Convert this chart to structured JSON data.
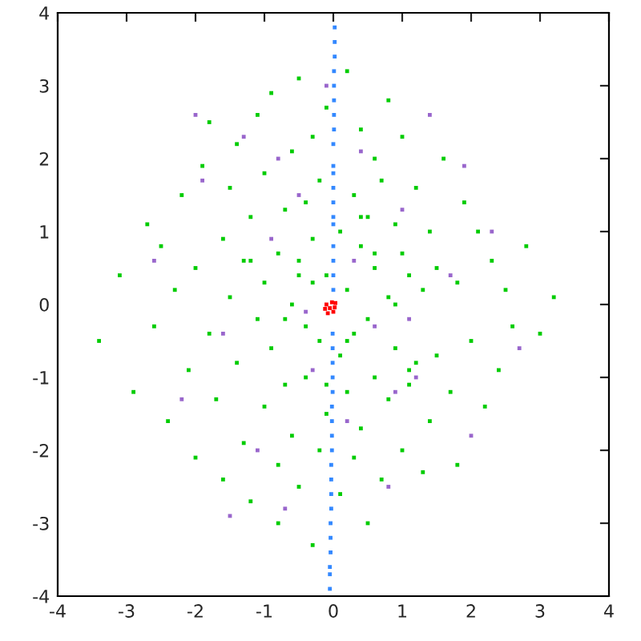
{
  "chart_data": {
    "type": "scatter",
    "marker": "square",
    "grid": false,
    "legend": false,
    "xlim": [
      -4,
      4
    ],
    "ylim": [
      -4,
      4
    ],
    "xticks": [
      -4,
      -3,
      -2,
      -1,
      0,
      1,
      2,
      3,
      4
    ],
    "yticks": [
      -4,
      -3,
      -2,
      -1,
      0,
      1,
      2,
      3,
      4
    ],
    "series": [
      {
        "color": "#00cc00",
        "x": [
          -3.4,
          -3.1,
          -2.9,
          -2.7,
          -2.6,
          -2.5,
          -2.4,
          -2.3,
          -2.2,
          -2.1,
          -2.0,
          -2.0,
          -1.9,
          -1.8,
          -1.8,
          -1.7,
          -1.6,
          -1.6,
          -1.5,
          -1.5,
          -1.4,
          -1.4,
          -1.3,
          -1.3,
          -1.2,
          -1.2,
          -1.1,
          -1.1,
          -1.0,
          -1.0,
          -1.0,
          -0.9,
          -0.9,
          -0.8,
          -0.8,
          -0.8,
          -0.7,
          -0.7,
          -0.6,
          -0.6,
          -0.6,
          -0.5,
          -0.5,
          -0.5,
          -0.4,
          -0.4,
          -0.4,
          -0.3,
          -0.3,
          -0.3,
          -0.2,
          -0.2,
          -0.2,
          -0.1,
          -0.1,
          -0.1,
          0.1,
          0.1,
          0.1,
          0.2,
          0.2,
          0.2,
          0.3,
          0.3,
          0.3,
          0.4,
          0.4,
          0.4,
          0.5,
          0.5,
          0.5,
          0.6,
          0.6,
          0.6,
          0.7,
          0.7,
          0.8,
          0.8,
          0.8,
          0.9,
          0.9,
          1.0,
          1.0,
          1.0,
          1.1,
          1.1,
          1.2,
          1.2,
          1.3,
          1.3,
          1.4,
          1.4,
          1.5,
          1.5,
          1.6,
          1.7,
          1.8,
          1.8,
          1.9,
          2.0,
          2.1,
          2.2,
          2.3,
          2.4,
          2.5,
          2.6,
          2.8,
          3.0,
          3.2,
          -0.3,
          0.2,
          0.6,
          -0.7,
          1.1,
          -1.2,
          0.4,
          -0.1,
          0.9,
          -0.5
        ],
        "values": [
          -0.5,
          0.4,
          -1.2,
          1.1,
          -0.3,
          0.8,
          -1.6,
          0.2,
          1.5,
          -0.9,
          0.5,
          -2.1,
          1.9,
          -0.4,
          2.5,
          -1.3,
          0.9,
          -2.4,
          0.1,
          1.6,
          -0.8,
          2.2,
          -1.9,
          0.6,
          1.2,
          -2.7,
          -0.2,
          2.6,
          0.3,
          -1.4,
          1.8,
          -0.6,
          2.9,
          0.7,
          -2.2,
          -3.0,
          1.3,
          -1.1,
          0.0,
          2.1,
          -1.8,
          0.6,
          -2.5,
          3.1,
          -0.3,
          1.4,
          -1.0,
          0.9,
          -3.3,
          2.3,
          -0.5,
          1.7,
          -2.0,
          0.4,
          -1.5,
          2.7,
          -0.7,
          1.0,
          -2.6,
          0.2,
          -1.2,
          3.2,
          1.5,
          -0.4,
          -2.1,
          0.8,
          -1.7,
          2.4,
          -0.2,
          1.2,
          -3.0,
          0.5,
          -1.0,
          2.0,
          -2.4,
          1.7,
          0.1,
          -1.3,
          2.8,
          -0.6,
          1.1,
          0.7,
          -2.0,
          2.3,
          -1.1,
          0.4,
          1.6,
          -0.8,
          -2.3,
          0.2,
          1.0,
          -1.6,
          0.5,
          -0.7,
          2.0,
          -1.2,
          0.3,
          -2.2,
          1.4,
          -0.5,
          1.0,
          -1.4,
          0.6,
          -0.9,
          0.2,
          -0.3,
          0.8,
          -0.4,
          0.1,
          0.3,
          -0.5,
          0.7,
          -0.2,
          -0.9,
          0.6,
          1.2,
          -1.1,
          0.0,
          0.4
        ]
      },
      {
        "color": "#9966cc",
        "x": [
          -2.6,
          -2.2,
          -1.9,
          -1.6,
          -1.3,
          -1.1,
          -0.9,
          -0.7,
          -0.5,
          -0.3,
          -0.1,
          0.2,
          0.4,
          0.6,
          0.8,
          1.0,
          1.2,
          1.4,
          1.7,
          2.0,
          2.3,
          2.7,
          -1.5,
          -0.8,
          0.3,
          1.1,
          1.9,
          -2.0,
          0.9,
          -0.4
        ],
        "values": [
          0.6,
          -1.3,
          1.7,
          -0.4,
          2.3,
          -2.0,
          0.9,
          -2.8,
          1.5,
          -0.9,
          3.0,
          -1.6,
          2.1,
          -0.3,
          -2.5,
          1.3,
          -1.0,
          2.6,
          0.4,
          -1.8,
          1.0,
          -0.6,
          -2.9,
          2.0,
          0.6,
          -0.2,
          1.9,
          2.6,
          -1.2,
          -0.1
        ]
      },
      {
        "color": "#3388ff",
        "x": [
          0.02,
          0.02,
          0.02,
          0.01,
          0.01,
          0.01,
          0.01,
          0.01,
          0.0,
          0.0,
          0.0,
          0.0,
          0.0,
          0.0,
          0.0,
          0.0,
          0.0,
          0.0,
          0.0,
          -0.01,
          -0.01,
          -0.01,
          -0.01,
          -0.01,
          -0.02,
          -0.02,
          -0.02,
          -0.02,
          -0.03,
          -0.03,
          -0.03,
          -0.03,
          -0.04,
          -0.04,
          -0.04,
          -0.05,
          -0.05,
          -0.05
        ],
        "values": [
          3.8,
          3.6,
          3.4,
          3.2,
          3.0,
          2.8,
          2.6,
          2.4,
          2.2,
          1.9,
          1.8,
          1.6,
          1.4,
          1.2,
          1.1,
          0.8,
          0.6,
          0.4,
          0.2,
          -0.4,
          -0.6,
          -0.8,
          -1.0,
          -1.2,
          -1.4,
          -1.6,
          -1.8,
          -2.0,
          -2.2,
          -2.4,
          -2.6,
          -2.8,
          -3.0,
          -3.2,
          -3.4,
          -3.6,
          -3.7,
          -3.9
        ]
      },
      {
        "color": "#ff0000",
        "x": [
          -0.05,
          -0.1,
          0.0,
          -0.08,
          -0.02,
          0.03,
          -0.12,
          0.02
        ],
        "values": [
          -0.05,
          0.0,
          -0.1,
          -0.12,
          0.03,
          0.02,
          -0.06,
          -0.04
        ]
      }
    ]
  }
}
